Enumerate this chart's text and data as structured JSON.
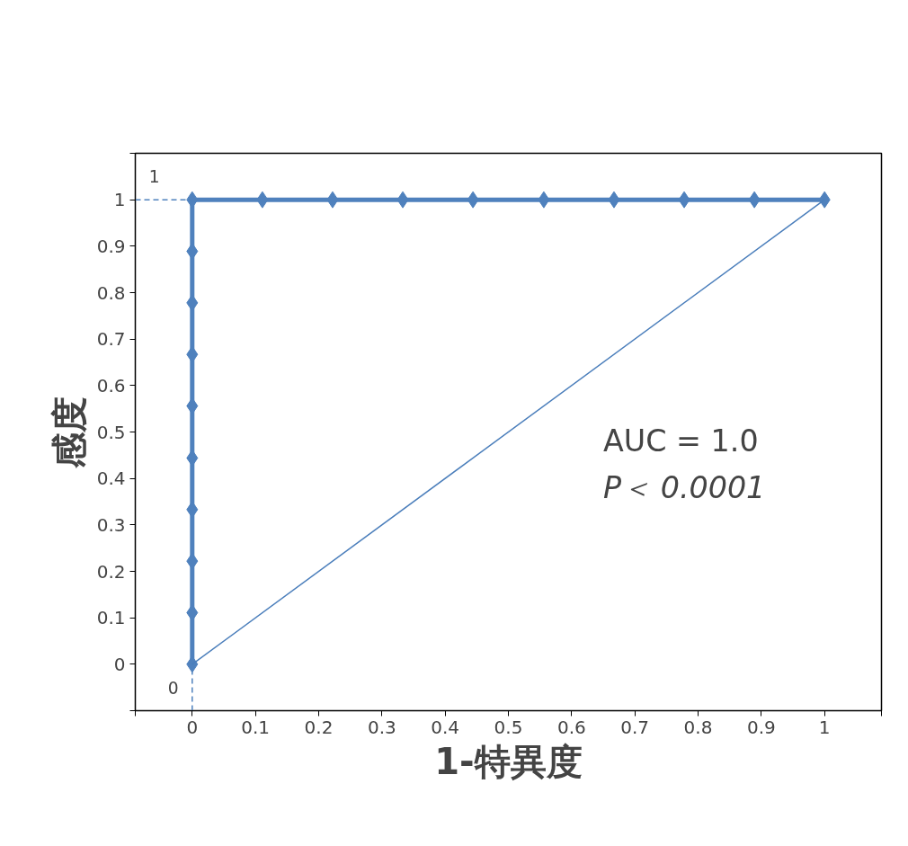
{
  "chart_data": {
    "type": "line",
    "xlabel": "1-特異度",
    "ylabel": "感度",
    "xlim": [
      -0.09,
      1.09
    ],
    "ylim": [
      -0.1,
      1.1
    ],
    "xticks": [
      {
        "value": -0.09,
        "label": null
      },
      0,
      0.1,
      0.2,
      0.3,
      0.4,
      0.5,
      0.6,
      0.7,
      0.8,
      0.9,
      1,
      {
        "value": 1.09,
        "label": null
      }
    ],
    "yticks": [
      {
        "value": -0.1,
        "label": null
      },
      0,
      0.1,
      0.2,
      0.3,
      0.4,
      0.5,
      0.6,
      0.7,
      0.8,
      0.9,
      1,
      {
        "value": 1.1,
        "label": null
      }
    ],
    "grid": false,
    "series": [
      {
        "color": "#4f81bd",
        "marker": "diamond",
        "line_style": "solid",
        "x": [
          0,
          0,
          0,
          0,
          0,
          0,
          0,
          0,
          0,
          0,
          0.111,
          0.222,
          0.333,
          0.444,
          0.556,
          0.667,
          0.778,
          0.889,
          1
        ],
        "values": [
          0,
          0.111,
          0.222,
          0.333,
          0.444,
          0.556,
          0.667,
          0.778,
          0.889,
          1,
          1,
          1,
          1,
          1,
          1,
          1,
          1,
          1,
          1
        ]
      },
      {
        "color": "#4a7ebb",
        "marker": "none",
        "line_style": "solid",
        "x": [
          0,
          1
        ],
        "values": [
          0,
          1
        ]
      },
      {
        "color": "#4f81bd",
        "marker": "none",
        "line_style": "dashed",
        "x": [
          -0.09,
          0
        ],
        "values": [
          1,
          1
        ]
      },
      {
        "color": "#4f81bd",
        "marker": "none",
        "line_style": "dashed",
        "x": [
          0,
          0
        ],
        "values": [
          -0.1,
          0
        ]
      }
    ],
    "annotations": [
      "1",
      "0",
      "AUC = 1.0",
      "P＜ 0.0001"
    ]
  }
}
